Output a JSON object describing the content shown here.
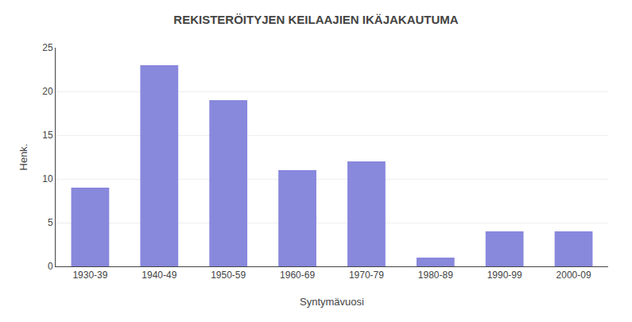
{
  "chart_data": {
    "type": "bar",
    "title": "REKISTERÖITYJEN KEILAAJIEN IKÄJAKAUTUMA",
    "xlabel": "Syntymävuosi",
    "ylabel": "Henk.",
    "categories": [
      "1930-39",
      "1940-49",
      "1950-59",
      "1960-69",
      "1970-79",
      "1980-89",
      "1990-99",
      "2000-09"
    ],
    "values": [
      9,
      23,
      19,
      11,
      12,
      1,
      4,
      4
    ],
    "color": "#8888dd",
    "ylim": [
      0,
      25
    ],
    "yticks": [
      0,
      5,
      10,
      15,
      20,
      25
    ],
    "grid": true
  }
}
